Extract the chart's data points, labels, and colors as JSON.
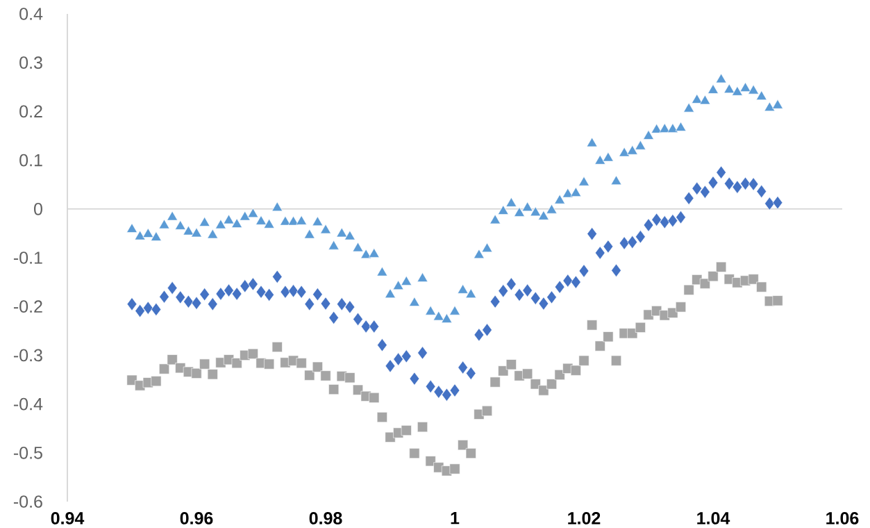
{
  "chart_data": {
    "type": "scatter",
    "x": [
      0.95,
      0.95125,
      0.9525,
      0.95375,
      0.955,
      0.95625,
      0.9575,
      0.95875,
      0.96,
      0.96125,
      0.9625,
      0.96375,
      0.965,
      0.96625,
      0.9675,
      0.96875,
      0.97,
      0.97125,
      0.9725,
      0.97375,
      0.975,
      0.97625,
      0.9775,
      0.97875,
      0.98,
      0.98125,
      0.9825,
      0.98375,
      0.985,
      0.98625,
      0.9875,
      0.98875,
      0.99,
      0.99125,
      0.9925,
      0.99375,
      0.995,
      0.99625,
      0.9975,
      0.99875,
      1,
      1.00125,
      1.0025,
      1.00375,
      1.005,
      1.00625,
      1.0075,
      1.00875,
      1.01,
      1.01125,
      1.0125,
      1.01375,
      1.015,
      1.01625,
      1.0175,
      1.01875,
      1.02,
      1.02125,
      1.0225,
      1.02375,
      1.025,
      1.02625,
      1.0275,
      1.02875,
      1.03,
      1.03125,
      1.0325,
      1.03375,
      1.035,
      1.03625,
      1.0375,
      1.03875,
      1.04,
      1.04125,
      1.0425,
      1.04375,
      1.045,
      1.04625,
      1.0475,
      1.04875,
      1.05
    ],
    "series": [
      {
        "color": "#5b9bd5",
        "marker": "triangle",
        "values": [
          -0.042,
          -0.057,
          -0.052,
          -0.059,
          -0.034,
          -0.017,
          -0.036,
          -0.047,
          -0.051,
          -0.029,
          -0.054,
          -0.034,
          -0.024,
          -0.032,
          -0.017,
          -0.011,
          -0.026,
          -0.033,
          0.002,
          -0.027,
          -0.027,
          -0.026,
          -0.054,
          -0.028,
          -0.044,
          -0.077,
          -0.051,
          -0.057,
          -0.081,
          -0.095,
          -0.093,
          -0.131,
          -0.176,
          -0.159,
          -0.15,
          -0.193,
          -0.143,
          -0.211,
          -0.222,
          -0.227,
          -0.211,
          -0.167,
          -0.176,
          -0.095,
          -0.082,
          -0.024,
          -0.005,
          0.011,
          -0.009,
          0.002,
          -0.008,
          -0.016,
          -0.003,
          0.017,
          0.03,
          0.032,
          0.054,
          0.134,
          0.098,
          0.104,
          0.056,
          0.114,
          0.118,
          0.128,
          0.149,
          0.162,
          0.163,
          0.163,
          0.166,
          0.205,
          0.223,
          0.221,
          0.243,
          0.265,
          0.244,
          0.239,
          0.247,
          0.242,
          0.23,
          0.207,
          0.212
        ]
      },
      {
        "color": "#4472c4",
        "marker": "diamond",
        "values": [
          -0.195,
          -0.209,
          -0.203,
          -0.206,
          -0.18,
          -0.162,
          -0.181,
          -0.19,
          -0.193,
          -0.175,
          -0.195,
          -0.174,
          -0.167,
          -0.174,
          -0.158,
          -0.154,
          -0.17,
          -0.176,
          -0.139,
          -0.17,
          -0.168,
          -0.17,
          -0.195,
          -0.175,
          -0.194,
          -0.223,
          -0.195,
          -0.201,
          -0.226,
          -0.241,
          -0.241,
          -0.279,
          -0.322,
          -0.308,
          -0.302,
          -0.348,
          -0.295,
          -0.364,
          -0.375,
          -0.381,
          -0.372,
          -0.325,
          -0.337,
          -0.258,
          -0.248,
          -0.19,
          -0.168,
          -0.154,
          -0.176,
          -0.167,
          -0.183,
          -0.194,
          -0.181,
          -0.16,
          -0.147,
          -0.15,
          -0.127,
          -0.051,
          -0.09,
          -0.077,
          -0.126,
          -0.07,
          -0.068,
          -0.057,
          -0.033,
          -0.022,
          -0.027,
          -0.024,
          -0.017,
          0.022,
          0.042,
          0.035,
          0.054,
          0.075,
          0.052,
          0.045,
          0.052,
          0.051,
          0.036,
          0.011,
          0.013
        ]
      },
      {
        "color": "#a5a5a5",
        "marker": "square",
        "values": [
          -0.351,
          -0.362,
          -0.356,
          -0.353,
          -0.328,
          -0.309,
          -0.326,
          -0.334,
          -0.337,
          -0.318,
          -0.339,
          -0.315,
          -0.309,
          -0.316,
          -0.3,
          -0.297,
          -0.316,
          -0.318,
          -0.283,
          -0.315,
          -0.311,
          -0.316,
          -0.341,
          -0.324,
          -0.342,
          -0.37,
          -0.343,
          -0.346,
          -0.371,
          -0.384,
          -0.387,
          -0.427,
          -0.468,
          -0.459,
          -0.454,
          -0.501,
          -0.447,
          -0.517,
          -0.53,
          -0.537,
          -0.533,
          -0.484,
          -0.501,
          -0.421,
          -0.414,
          -0.355,
          -0.332,
          -0.319,
          -0.342,
          -0.338,
          -0.359,
          -0.372,
          -0.359,
          -0.34,
          -0.327,
          -0.331,
          -0.311,
          -0.238,
          -0.281,
          -0.262,
          -0.311,
          -0.255,
          -0.255,
          -0.243,
          -0.217,
          -0.209,
          -0.218,
          -0.213,
          -0.201,
          -0.166,
          -0.145,
          -0.153,
          -0.138,
          -0.119,
          -0.144,
          -0.151,
          -0.147,
          -0.144,
          -0.16,
          -0.189,
          -0.188
        ]
      }
    ],
    "xlim": [
      0.94,
      1.06
    ],
    "ylim": [
      -0.6,
      0.4
    ],
    "xticks": [
      0.94,
      0.96,
      0.98,
      1,
      1.02,
      1.04,
      1.06
    ],
    "yticks": [
      -0.6,
      -0.5,
      -0.4,
      -0.3,
      -0.2,
      -0.1,
      0,
      0.1,
      0.2,
      0.3,
      0.4
    ]
  }
}
